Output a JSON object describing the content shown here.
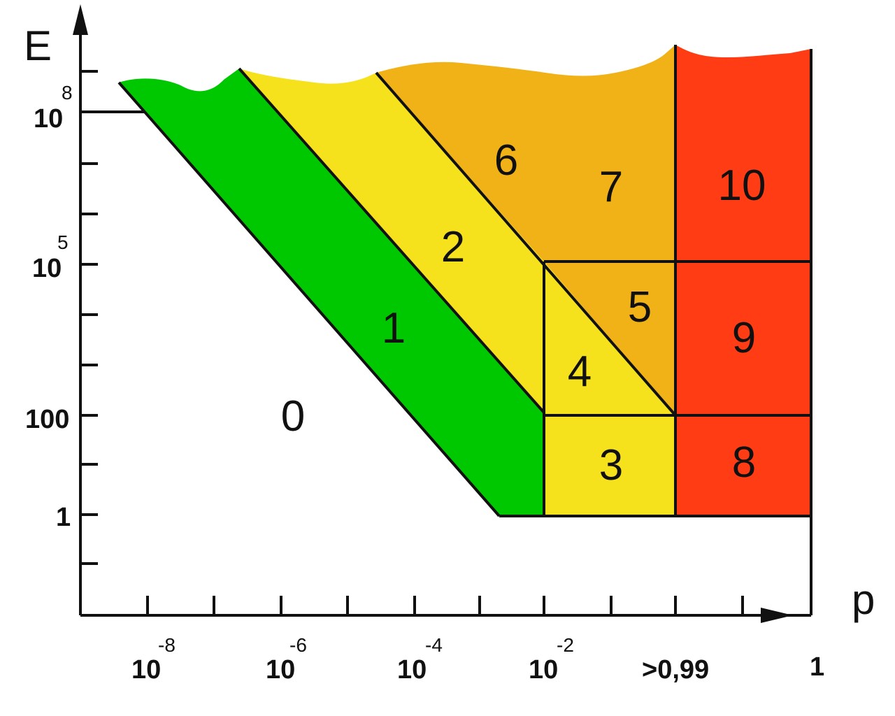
{
  "colors": {
    "zone_0": "#ffffff",
    "zone_1": "#00c800",
    "zone_2": "#f5e21c",
    "zone_3": "#f5e21c",
    "zone_4": "#f5e21c",
    "zone_5": "#f0b216",
    "zone_6": "#f0b216",
    "zone_7": "#f0b216",
    "zone_8": "#ff3c14",
    "zone_9": "#ff3c14",
    "zone_10": "#ff3c14",
    "lines": "#111111"
  },
  "axes": {
    "y_name": "E",
    "x_name": "p",
    "y_ticks": [
      {
        "base": "10",
        "exp": "8"
      },
      {
        "base": "10",
        "exp": "5"
      },
      {
        "base": "100",
        "exp": ""
      },
      {
        "base": "1",
        "exp": ""
      }
    ],
    "x_ticks": [
      {
        "base": "10",
        "exp": "-8"
      },
      {
        "base": "10",
        "exp": "-6"
      },
      {
        "base": "10",
        "exp": "-4"
      },
      {
        "base": "10",
        "exp": "-2"
      },
      {
        "base": ">0,99",
        "exp": ""
      },
      {
        "base": "1",
        "exp": ""
      }
    ]
  },
  "regions": [
    {
      "label": "0"
    },
    {
      "label": "1"
    },
    {
      "label": "2"
    },
    {
      "label": "3"
    },
    {
      "label": "4"
    },
    {
      "label": "5"
    },
    {
      "label": "6"
    },
    {
      "label": "7"
    },
    {
      "label": "8"
    },
    {
      "label": "9"
    },
    {
      "label": "10"
    }
  ]
}
